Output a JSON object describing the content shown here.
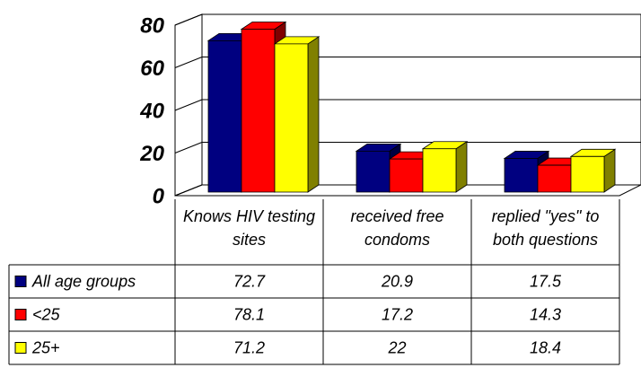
{
  "chart_data": {
    "type": "bar3d",
    "categories": [
      "Knows HIV testing sites",
      "received free condoms",
      "replied \"yes\" to both questions"
    ],
    "series": [
      {
        "name": "All age groups",
        "color": "#000080",
        "values": [
          72.7,
          20.9,
          17.5
        ]
      },
      {
        "name": "<25",
        "color": "#ff0000",
        "values": [
          78.1,
          17.2,
          14.3
        ]
      },
      {
        "name": "25+",
        "color": "#ffff00",
        "values": [
          71.2,
          22,
          18.4
        ]
      }
    ],
    "ylim": [
      0,
      80
    ],
    "yticks": [
      0,
      20,
      40,
      60,
      80
    ],
    "grid": true,
    "legend": "table"
  }
}
